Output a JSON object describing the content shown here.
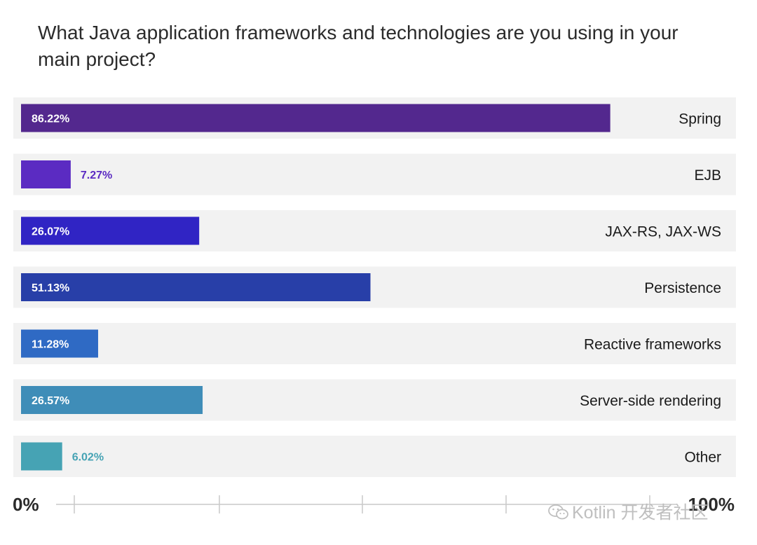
{
  "chart_data": {
    "type": "bar",
    "orientation": "horizontal",
    "title": "What Java application frameworks and technologies are you using in your main project?",
    "categories": [
      "Spring",
      "EJB",
      "JAX-RS, JAX-WS",
      "Persistence",
      "Reactive frameworks",
      "Server-side rendering",
      "Other"
    ],
    "values": [
      86.22,
      7.27,
      26.07,
      51.13,
      11.28,
      26.57,
      6.02
    ],
    "value_labels": [
      "86.22%",
      "7.27%",
      "26.07%",
      "51.13%",
      "11.28%",
      "26.57%",
      "6.02%"
    ],
    "colors": [
      "#53288e",
      "#5b2bc2",
      "#3024c4",
      "#283fa8",
      "#2f6ac4",
      "#3f8db8",
      "#46a3b4"
    ],
    "xlim": [
      0,
      100
    ],
    "axis_labels": {
      "min": "0%",
      "max": "100%"
    },
    "grid": false
  },
  "watermark": "Kotlin 开发者社区"
}
